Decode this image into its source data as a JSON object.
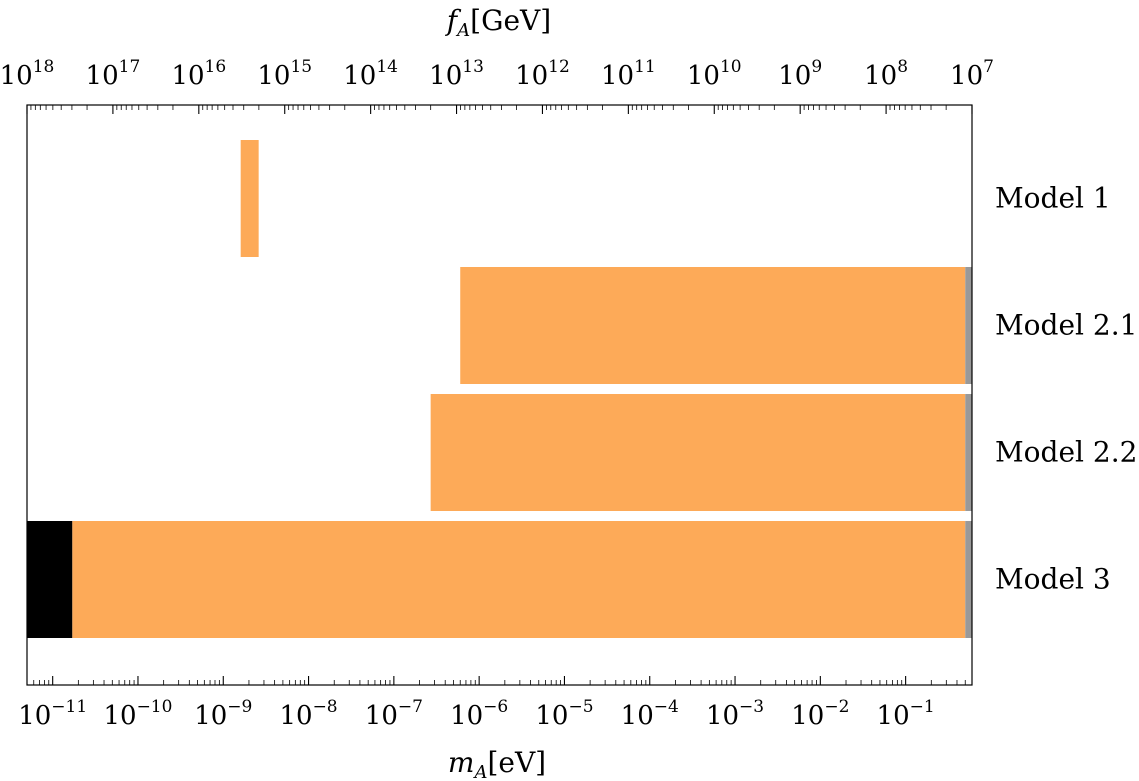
{
  "chart_data": {
    "type": "bar",
    "orientation": "horizontal",
    "x_scale": "log",
    "xlim": [
      5e-12,
      0.6
    ],
    "bottom_axis": {
      "label_var": "m",
      "label_sub": "A",
      "label_unit": "[eV]",
      "tick_base": "10",
      "tick_exponents": [
        "−11",
        "−10",
        "−9",
        "−8",
        "−7",
        "−6",
        "−5",
        "−4",
        "−3",
        "−2",
        "−1"
      ]
    },
    "top_axis": {
      "label_var": "f",
      "label_sub": "A",
      "label_unit": "[GeV]",
      "tick_base": "10",
      "tick_exponents": [
        "18",
        "17",
        "16",
        "15",
        "14",
        "13",
        "12",
        "11",
        "10",
        "9",
        "8",
        "7"
      ]
    },
    "categories": [
      "Model 1",
      "Model 2.1",
      "Model 2.2",
      "Model 3"
    ],
    "bars": [
      {
        "category": "Model 1",
        "segments": [
          {
            "from": 1.6e-09,
            "to": 2.6e-09,
            "color": "#FDAA58"
          }
        ]
      },
      {
        "category": "Model 2.1",
        "segments": [
          {
            "from": 6e-07,
            "to": 0.5,
            "color": "#FDAA58"
          },
          {
            "from": 0.5,
            "to": 0.6,
            "color": "#999999"
          }
        ]
      },
      {
        "category": "Model 2.2",
        "segments": [
          {
            "from": 2.7e-07,
            "to": 0.5,
            "color": "#FDAA58"
          },
          {
            "from": 0.5,
            "to": 0.6,
            "color": "#999999"
          }
        ]
      },
      {
        "category": "Model 3",
        "segments": [
          {
            "from": 5e-12,
            "to": 1.7e-11,
            "color": "#000000"
          },
          {
            "from": 1.7e-11,
            "to": 0.5,
            "color": "#FDAA58"
          },
          {
            "from": 0.5,
            "to": 0.6,
            "color": "#999999"
          }
        ]
      }
    ],
    "grid": false,
    "legend": "none"
  }
}
